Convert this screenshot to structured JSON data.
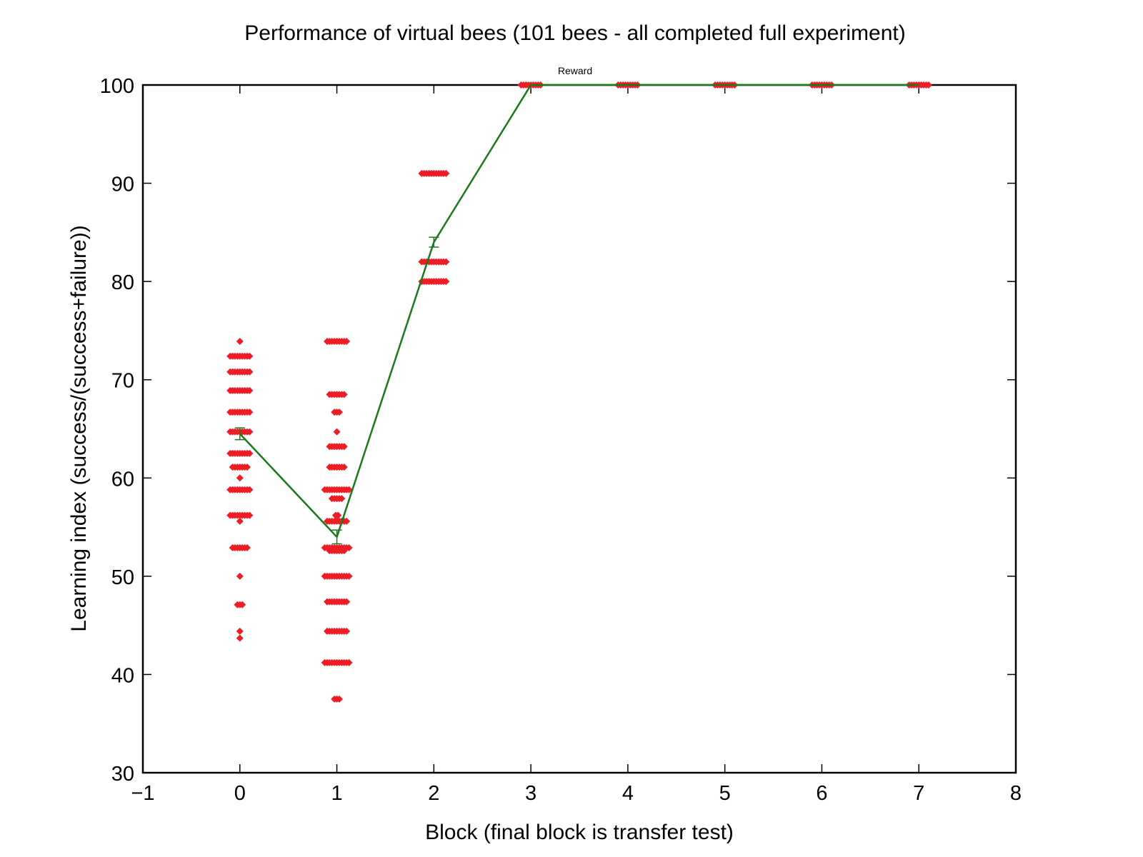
{
  "chart_data": {
    "type": "scatter",
    "title": "Performance of virtual bees (101 bees - all completed full experiment)",
    "annotation": "Reward",
    "xlabel": "Block (final block is transfer test)",
    "ylabel": "Learning index (success/(success+failure))",
    "xlim": [
      -1,
      8
    ],
    "ylim": [
      30,
      100
    ],
    "xticks": [
      -1,
      0,
      1,
      2,
      3,
      4,
      5,
      6,
      7,
      8
    ],
    "xtick_labels": [
      "−1",
      "0",
      "1",
      "2",
      "3",
      "4",
      "5",
      "6",
      "7",
      "8"
    ],
    "yticks": [
      30,
      40,
      50,
      60,
      70,
      80,
      90,
      100
    ],
    "ytick_labels": [
      "30",
      "40",
      "50",
      "60",
      "70",
      "80",
      "90",
      "100"
    ],
    "grid": false,
    "colors": {
      "points": "#ee1c25",
      "mean_line": "#1a7a1a",
      "axes": "#000000"
    },
    "series": [
      {
        "kind": "points",
        "groups": [
          {
            "x": 0,
            "points": [
              {
                "y": 73.9,
                "n": 1
              },
              {
                "y": 72.4,
                "n": 9
              },
              {
                "y": 70.8,
                "n": 9
              },
              {
                "y": 68.9,
                "n": 9
              },
              {
                "y": 66.7,
                "n": 9
              },
              {
                "y": 64.7,
                "n": 9
              },
              {
                "y": 62.5,
                "n": 9
              },
              {
                "y": 61.1,
                "n": 7
              },
              {
                "y": 60.0,
                "n": 1
              },
              {
                "y": 58.8,
                "n": 9
              },
              {
                "y": 56.2,
                "n": 9
              },
              {
                "y": 55.6,
                "n": 1
              },
              {
                "y": 52.9,
                "n": 7
              },
              {
                "y": 50.0,
                "n": 1
              },
              {
                "y": 47.1,
                "n": 3
              },
              {
                "y": 44.4,
                "n": 1
              },
              {
                "y": 43.7,
                "n": 1
              }
            ]
          },
          {
            "x": 1,
            "points": [
              {
                "y": 73.9,
                "n": 9
              },
              {
                "y": 68.5,
                "n": 7
              },
              {
                "y": 66.7,
                "n": 3
              },
              {
                "y": 64.7,
                "n": 1
              },
              {
                "y": 63.2,
                "n": 7
              },
              {
                "y": 61.1,
                "n": 7
              },
              {
                "y": 58.8,
                "n": 11
              },
              {
                "y": 57.9,
                "n": 5
              },
              {
                "y": 56.2,
                "n": 2
              },
              {
                "y": 55.6,
                "n": 9
              },
              {
                "y": 52.9,
                "n": 11
              },
              {
                "y": 52.6,
                "n": 7
              },
              {
                "y": 50.0,
                "n": 11
              },
              {
                "y": 47.4,
                "n": 9
              },
              {
                "y": 44.4,
                "n": 9
              },
              {
                "y": 41.2,
                "n": 11
              },
              {
                "y": 37.5,
                "n": 3
              }
            ]
          },
          {
            "x": 2,
            "points": [
              {
                "y": 91.0,
                "n": 11
              },
              {
                "y": 82.0,
                "n": 11
              },
              {
                "y": 80.0,
                "n": 11
              }
            ]
          },
          {
            "x": 3,
            "points": [
              {
                "y": 100.0,
                "n": 9
              }
            ]
          },
          {
            "x": 4,
            "points": [
              {
                "y": 100.0,
                "n": 9
              }
            ]
          },
          {
            "x": 5,
            "points": [
              {
                "y": 100.0,
                "n": 9
              }
            ]
          },
          {
            "x": 6,
            "points": [
              {
                "y": 100.0,
                "n": 9
              }
            ]
          },
          {
            "x": 7,
            "points": [
              {
                "y": 100.0,
                "n": 9
              }
            ]
          }
        ]
      },
      {
        "kind": "mean_line",
        "x": [
          0,
          1,
          2,
          3,
          4,
          5,
          6,
          7
        ],
        "y": [
          64.5,
          54.0,
          84.0,
          100.0,
          100.0,
          100.0,
          100.0,
          100.0
        ],
        "error": [
          0.6,
          0.7,
          0.5,
          0,
          0,
          0,
          0,
          0
        ]
      }
    ]
  }
}
